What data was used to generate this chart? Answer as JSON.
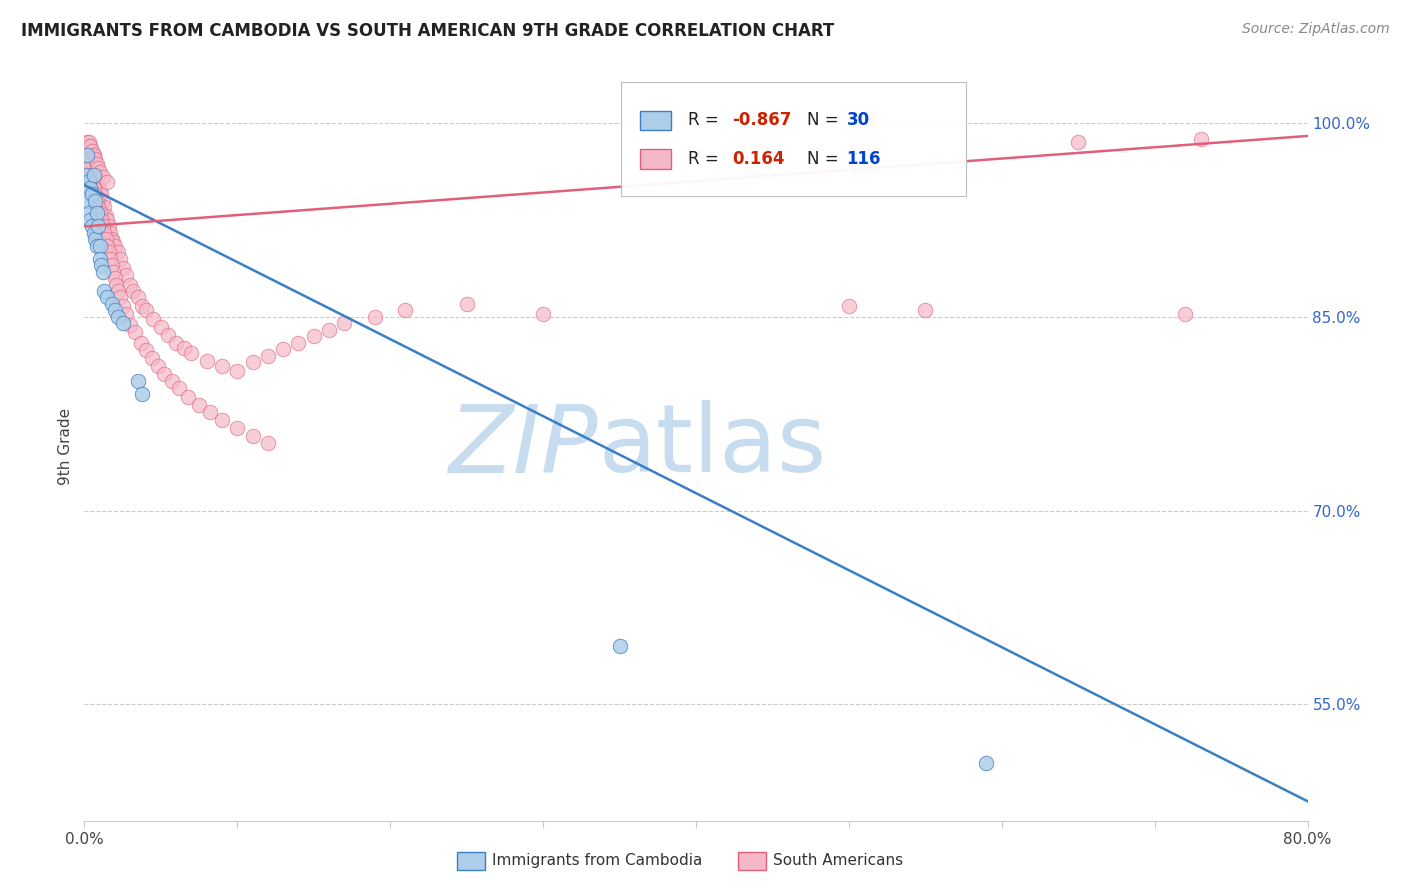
{
  "title": "IMMIGRANTS FROM CAMBODIA VS SOUTH AMERICAN 9TH GRADE CORRELATION CHART",
  "source": "Source: ZipAtlas.com",
  "ylabel": "9th Grade",
  "legend_blue_label": "Immigrants from Cambodia",
  "legend_pink_label": "South Americans",
  "blue_color": "#aecde8",
  "pink_color": "#f5b8c8",
  "blue_line_color": "#3a7ec4",
  "pink_line_color": "#e0607a",
  "watermark_zip": "ZIP",
  "watermark_atlas": "atlas",
  "watermark_color_zip": "#c8dcf0",
  "watermark_color_atlas": "#c8dcf0",
  "xlim": [
    0.0,
    0.8
  ],
  "ylim": [
    0.46,
    1.04
  ],
  "blue_line_x": [
    0.0,
    0.8
  ],
  "blue_line_y": [
    0.952,
    0.475
  ],
  "pink_line_x": [
    0.0,
    0.8
  ],
  "pink_line_y": [
    0.92,
    0.99
  ],
  "blue_points_x": [
    0.001,
    0.002,
    0.002,
    0.003,
    0.003,
    0.004,
    0.004,
    0.005,
    0.005,
    0.006,
    0.006,
    0.007,
    0.007,
    0.008,
    0.008,
    0.009,
    0.01,
    0.01,
    0.011,
    0.012,
    0.013,
    0.015,
    0.018,
    0.02,
    0.022,
    0.025,
    0.035,
    0.038,
    0.35,
    0.59
  ],
  "blue_points_y": [
    0.96,
    0.975,
    0.94,
    0.955,
    0.93,
    0.95,
    0.925,
    0.945,
    0.92,
    0.96,
    0.915,
    0.94,
    0.91,
    0.93,
    0.905,
    0.92,
    0.905,
    0.895,
    0.89,
    0.885,
    0.87,
    0.865,
    0.86,
    0.855,
    0.85,
    0.845,
    0.8,
    0.79,
    0.595,
    0.505
  ],
  "pink_points_x": [
    0.001,
    0.001,
    0.002,
    0.002,
    0.003,
    0.003,
    0.003,
    0.004,
    0.004,
    0.005,
    0.005,
    0.006,
    0.006,
    0.007,
    0.007,
    0.008,
    0.008,
    0.009,
    0.009,
    0.01,
    0.01,
    0.011,
    0.012,
    0.012,
    0.013,
    0.014,
    0.015,
    0.016,
    0.017,
    0.018,
    0.019,
    0.02,
    0.022,
    0.023,
    0.025,
    0.027,
    0.03,
    0.032,
    0.035,
    0.038,
    0.04,
    0.045,
    0.05,
    0.055,
    0.06,
    0.065,
    0.07,
    0.08,
    0.09,
    0.1,
    0.11,
    0.12,
    0.13,
    0.14,
    0.15,
    0.16,
    0.17,
    0.19,
    0.21,
    0.25,
    0.002,
    0.003,
    0.004,
    0.005,
    0.006,
    0.007,
    0.008,
    0.009,
    0.01,
    0.011,
    0.012,
    0.013,
    0.014,
    0.015,
    0.016,
    0.017,
    0.018,
    0.019,
    0.02,
    0.021,
    0.022,
    0.023,
    0.025,
    0.027,
    0.03,
    0.033,
    0.037,
    0.04,
    0.044,
    0.048,
    0.052,
    0.057,
    0.062,
    0.068,
    0.075,
    0.082,
    0.09,
    0.1,
    0.11,
    0.12,
    0.003,
    0.004,
    0.005,
    0.006,
    0.007,
    0.008,
    0.009,
    0.01,
    0.012,
    0.015,
    0.3,
    0.5,
    0.55,
    0.65,
    0.73,
    0.72
  ],
  "pink_points_y": [
    0.98,
    0.965,
    0.985,
    0.975,
    0.978,
    0.972,
    0.96,
    0.982,
    0.955,
    0.968,
    0.95,
    0.975,
    0.945,
    0.965,
    0.94,
    0.958,
    0.935,
    0.952,
    0.93,
    0.948,
    0.925,
    0.945,
    0.94,
    0.93,
    0.935,
    0.928,
    0.925,
    0.92,
    0.915,
    0.91,
    0.908,
    0.905,
    0.9,
    0.895,
    0.888,
    0.882,
    0.875,
    0.87,
    0.865,
    0.858,
    0.855,
    0.848,
    0.842,
    0.836,
    0.83,
    0.826,
    0.822,
    0.816,
    0.812,
    0.808,
    0.815,
    0.82,
    0.825,
    0.83,
    0.835,
    0.84,
    0.845,
    0.85,
    0.855,
    0.86,
    0.97,
    0.965,
    0.96,
    0.955,
    0.95,
    0.945,
    0.94,
    0.935,
    0.93,
    0.925,
    0.92,
    0.915,
    0.91,
    0.905,
    0.9,
    0.895,
    0.89,
    0.885,
    0.88,
    0.875,
    0.87,
    0.865,
    0.858,
    0.852,
    0.844,
    0.838,
    0.83,
    0.824,
    0.818,
    0.812,
    0.806,
    0.8,
    0.795,
    0.788,
    0.782,
    0.776,
    0.77,
    0.764,
    0.758,
    0.752,
    0.985,
    0.982,
    0.978,
    0.975,
    0.972,
    0.968,
    0.965,
    0.962,
    0.958,
    0.954,
    0.852,
    0.858,
    0.855,
    0.985,
    0.988,
    0.852
  ]
}
